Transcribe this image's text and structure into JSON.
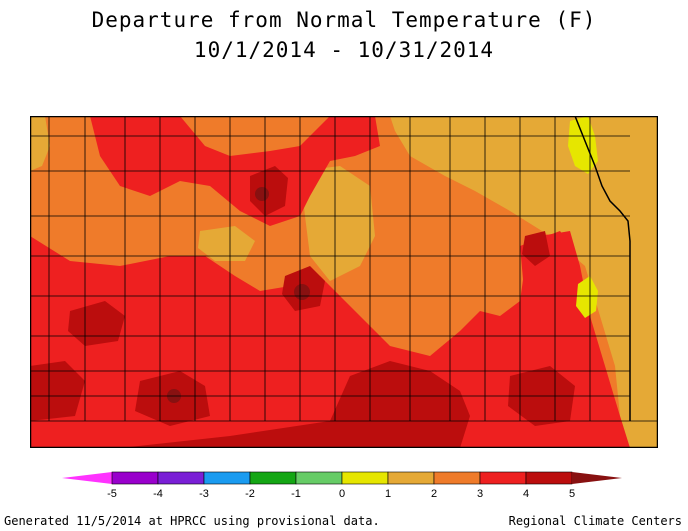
{
  "title": {
    "line1": "Departure from Normal Temperature (F)",
    "line2": "10/1/2014 - 10/31/2014"
  },
  "legend": {
    "labels": [
      "-5",
      "-4",
      "-3",
      "-2",
      "-1",
      "0",
      "1",
      "2",
      "3",
      "4",
      "5"
    ],
    "colors": [
      "#ff33ff",
      "#9900cc",
      "#7a1fd6",
      "#1a9bf0",
      "#14a614",
      "#66cc66",
      "#e6e600",
      "#e5a936",
      "#ef7b2a",
      "#ee2020",
      "#bb0d0d",
      "#881111"
    ]
  },
  "colors": {
    "cat_1_2": "#e5a936",
    "cat_2_3": "#ef7b2a",
    "cat_3_4": "#ee2020",
    "cat_4_5": "#bb0d0d",
    "cat_0_1": "#e6e600"
  },
  "footer": {
    "left": "Generated 11/5/2014 at HPRCC using provisional data.",
    "right": "Regional Climate Centers"
  }
}
